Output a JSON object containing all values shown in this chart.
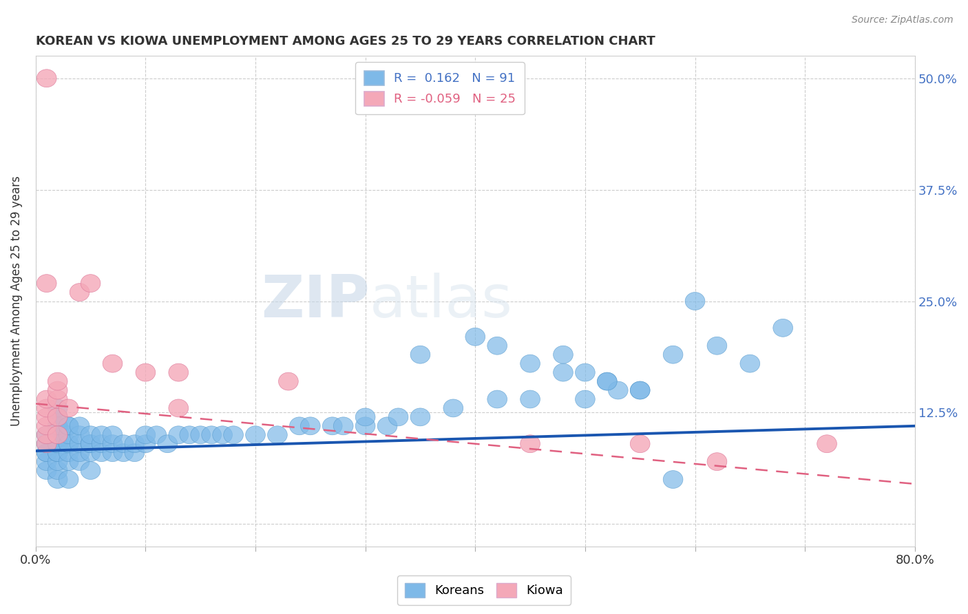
{
  "title": "KOREAN VS KIOWA UNEMPLOYMENT AMONG AGES 25 TO 29 YEARS CORRELATION CHART",
  "source_text": "Source: ZipAtlas.com",
  "ylabel": "Unemployment Among Ages 25 to 29 years",
  "xlim": [
    0.0,
    0.8
  ],
  "ylim": [
    -0.025,
    0.525
  ],
  "xticks": [
    0.0,
    0.1,
    0.2,
    0.3,
    0.4,
    0.5,
    0.6,
    0.7,
    0.8
  ],
  "xticklabels": [
    "0.0%",
    "",
    "",
    "",
    "",
    "",
    "",
    "",
    "80.0%"
  ],
  "yticks": [
    0.0,
    0.125,
    0.25,
    0.375,
    0.5
  ],
  "yticklabels": [
    "",
    "12.5%",
    "25.0%",
    "37.5%",
    "50.0%"
  ],
  "korean_color": "#7EB9E8",
  "kiowa_color": "#F4A8B8",
  "korean_line_color": "#1A56B0",
  "kiowa_line_color": "#E06080",
  "watermark_zip": "ZIP",
  "watermark_atlas": "atlas",
  "background_color": "#ffffff",
  "legend_korean_label": "R =  0.162   N = 91",
  "legend_kiowa_label": "R = -0.059   N = 25",
  "korean_line_x0": 0.0,
  "korean_line_y0": 0.082,
  "korean_line_x1": 0.8,
  "korean_line_y1": 0.11,
  "kiowa_line_x0": 0.0,
  "kiowa_line_y0": 0.135,
  "kiowa_line_x1": 0.8,
  "kiowa_line_y1": 0.045,
  "korean_x": [
    0.01,
    0.01,
    0.01,
    0.01,
    0.01,
    0.01,
    0.02,
    0.02,
    0.02,
    0.02,
    0.02,
    0.02,
    0.02,
    0.02,
    0.02,
    0.02,
    0.02,
    0.02,
    0.02,
    0.02,
    0.03,
    0.03,
    0.03,
    0.03,
    0.03,
    0.03,
    0.03,
    0.03,
    0.04,
    0.04,
    0.04,
    0.04,
    0.04,
    0.05,
    0.05,
    0.05,
    0.05,
    0.05,
    0.06,
    0.06,
    0.06,
    0.07,
    0.07,
    0.07,
    0.08,
    0.08,
    0.09,
    0.09,
    0.1,
    0.1,
    0.11,
    0.12,
    0.13,
    0.14,
    0.15,
    0.16,
    0.17,
    0.18,
    0.2,
    0.22,
    0.24,
    0.25,
    0.27,
    0.28,
    0.3,
    0.3,
    0.32,
    0.33,
    0.35,
    0.38,
    0.42,
    0.45,
    0.48,
    0.5,
    0.55,
    0.58,
    0.6,
    0.62,
    0.65,
    0.68,
    0.5,
    0.52,
    0.53,
    0.55,
    0.58,
    0.42,
    0.45,
    0.48,
    0.52,
    0.4,
    0.35
  ],
  "korean_y": [
    0.06,
    0.07,
    0.08,
    0.08,
    0.09,
    0.1,
    0.05,
    0.06,
    0.07,
    0.08,
    0.08,
    0.09,
    0.09,
    0.1,
    0.1,
    0.11,
    0.11,
    0.12,
    0.12,
    0.13,
    0.05,
    0.07,
    0.08,
    0.09,
    0.09,
    0.1,
    0.11,
    0.11,
    0.07,
    0.08,
    0.09,
    0.1,
    0.11,
    0.06,
    0.08,
    0.09,
    0.09,
    0.1,
    0.08,
    0.09,
    0.1,
    0.08,
    0.09,
    0.1,
    0.08,
    0.09,
    0.08,
    0.09,
    0.09,
    0.1,
    0.1,
    0.09,
    0.1,
    0.1,
    0.1,
    0.1,
    0.1,
    0.1,
    0.1,
    0.1,
    0.11,
    0.11,
    0.11,
    0.11,
    0.11,
    0.12,
    0.11,
    0.12,
    0.12,
    0.13,
    0.14,
    0.14,
    0.19,
    0.14,
    0.15,
    0.19,
    0.25,
    0.2,
    0.18,
    0.22,
    0.17,
    0.16,
    0.15,
    0.15,
    0.05,
    0.2,
    0.18,
    0.17,
    0.16,
    0.21,
    0.19
  ],
  "kiowa_x": [
    0.01,
    0.01,
    0.01,
    0.01,
    0.01,
    0.01,
    0.01,
    0.01,
    0.02,
    0.02,
    0.02,
    0.02,
    0.02,
    0.03,
    0.04,
    0.05,
    0.07,
    0.1,
    0.13,
    0.13,
    0.23,
    0.45,
    0.55,
    0.62,
    0.72
  ],
  "kiowa_y": [
    0.09,
    0.1,
    0.11,
    0.12,
    0.13,
    0.14,
    0.27,
    0.5,
    0.1,
    0.12,
    0.14,
    0.15,
    0.16,
    0.13,
    0.26,
    0.27,
    0.18,
    0.17,
    0.13,
    0.17,
    0.16,
    0.09,
    0.09,
    0.07,
    0.09
  ]
}
